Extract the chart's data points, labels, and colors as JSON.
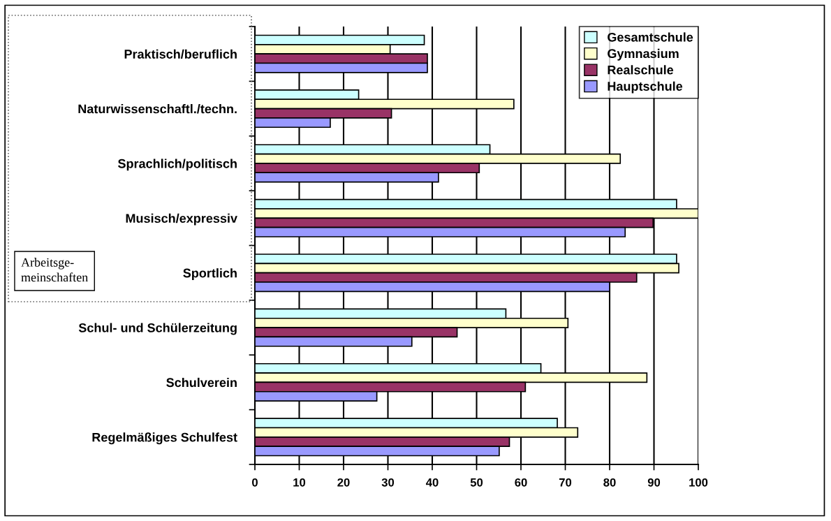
{
  "chart_data": {
    "type": "bar",
    "orientation": "horizontal",
    "categories": [
      "Praktisch/beruflich",
      "Naturwissenschaftl./techn.",
      "Sprachlich/politisch",
      "Musisch/expressiv",
      "Sportlich",
      "Schul- und Schülerzeitung",
      "Schulverein",
      "Regelmäßiges Schulfest"
    ],
    "series": [
      {
        "name": "Gesamtschule",
        "color": "#ccffff",
        "values": [
          38.2,
          23.4,
          53.0,
          95.1,
          95.1,
          56.6,
          64.5,
          68.2
        ]
      },
      {
        "name": "Gymnasium",
        "color": "#ffffcc",
        "values": [
          30.5,
          58.4,
          82.4,
          100,
          95.6,
          70.6,
          88.4,
          72.8
        ]
      },
      {
        "name": "Realschule",
        "color": "#993366",
        "values": [
          38.9,
          30.8,
          50.6,
          89.8,
          86.1,
          45.6,
          61.0,
          57.4
        ]
      },
      {
        "name": "Hauptschule",
        "color": "#9999ff",
        "values": [
          38.9,
          17.0,
          41.4,
          83.5,
          80.0,
          35.4,
          27.5,
          55.1
        ]
      }
    ],
    "xlim": [
      0,
      100
    ],
    "xticks": [
      0,
      10,
      20,
      30,
      40,
      50,
      60,
      70,
      80,
      90,
      100
    ],
    "grid": "x",
    "legend": "top right",
    "annotations": [
      "Arbeitsge-\nmeinschaften"
    ]
  }
}
